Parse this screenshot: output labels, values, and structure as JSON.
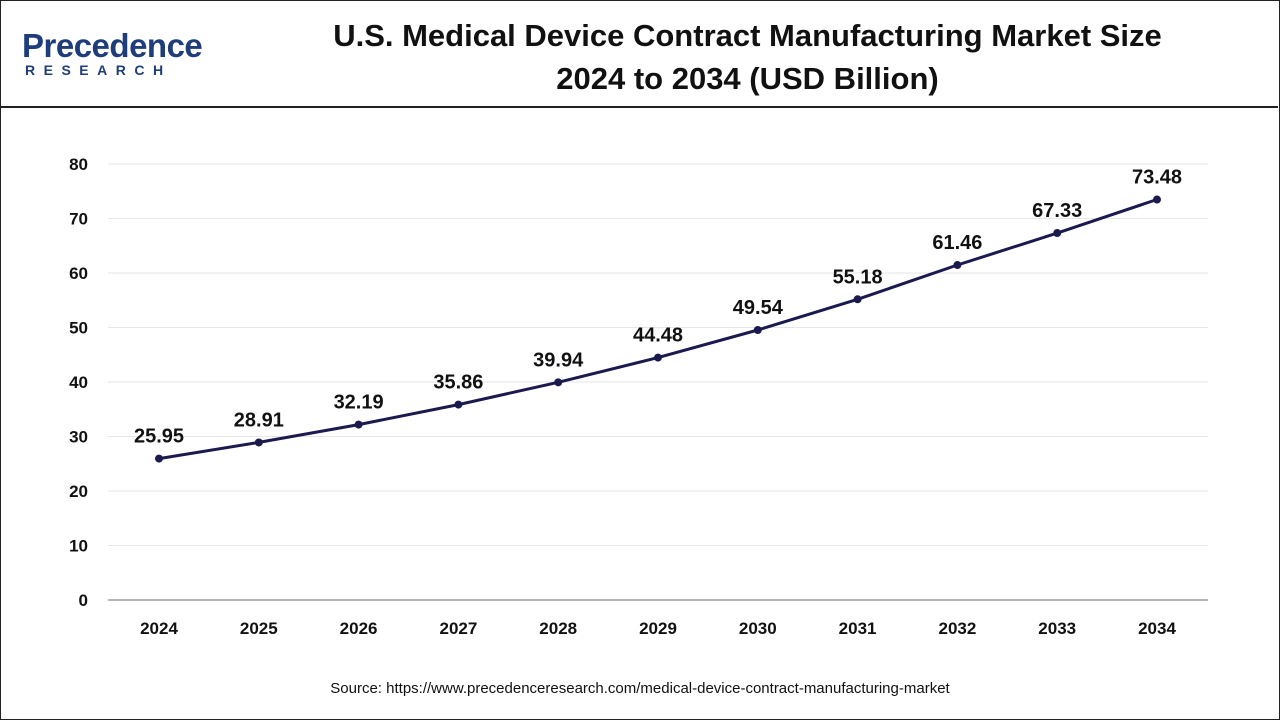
{
  "brand": {
    "name_main": "Precedence",
    "name_sub": "RESEARCH"
  },
  "title": {
    "line1": "U.S. Medical Device Contract Manufacturing Market Size",
    "line2": "2024 to 2034 (USD Billion)"
  },
  "colors": {
    "line": "#1a1a4e",
    "grid": "#e6e6e6",
    "axis": "#888888",
    "brand": "#1f3d7a"
  },
  "chart_data": {
    "type": "line",
    "title": "U.S. Medical Device Contract Manufacturing Market Size 2024 to 2034 (USD Billion)",
    "xlabel": "",
    "ylabel": "",
    "categories": [
      "2024",
      "2025",
      "2026",
      "2027",
      "2028",
      "2029",
      "2030",
      "2031",
      "2032",
      "2033",
      "2034"
    ],
    "series": [
      {
        "name": "Market Size (USD Billion)",
        "values": [
          25.95,
          28.91,
          32.19,
          35.86,
          39.94,
          44.48,
          49.54,
          55.18,
          61.46,
          67.33,
          73.48
        ]
      }
    ],
    "data_labels": [
      "25.95",
      "28.91",
      "32.19",
      "35.86",
      "39.94",
      "44.48",
      "49.54",
      "55.18",
      "61.46",
      "67.33",
      "73.48"
    ],
    "ylim": [
      0,
      80
    ],
    "yticks": [
      "0",
      "10",
      "20",
      "30",
      "40",
      "50",
      "60",
      "70",
      "80"
    ],
    "grid": true,
    "legend": "none"
  },
  "source": "Source: https://www.precedenceresearch.com/medical-device-contract-manufacturing-market"
}
